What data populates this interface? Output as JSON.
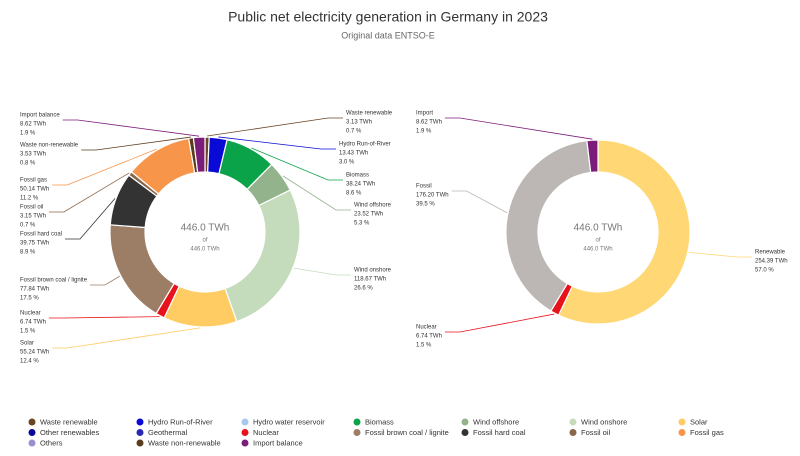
{
  "title": "Public net electricity generation in Germany in 2023",
  "subtitle": "Original data ENTSO-E",
  "chart_data": [
    {
      "type": "donut",
      "center_label": "446.0 TWh",
      "center_sub": "of",
      "center_total": "446.0 TWh",
      "categories": [
        "Waste renewable",
        "Hydro Run-of-River",
        "Biomass",
        "Wind offshore",
        "Wind onshore",
        "Solar",
        "Nuclear",
        "Fossil brown coal / lignite",
        "Fossil hard coal",
        "Fossil oil",
        "Fossil gas",
        "Waste non-renewable",
        "Import balance"
      ],
      "values": [
        3.13,
        13.43,
        38.24,
        23.52,
        118.67,
        55.24,
        6.74,
        77.84,
        39.75,
        3.15,
        50.14,
        3.53,
        8.62
      ],
      "value_labels": [
        "3.13 TWh",
        "13.43 TWh",
        "38.24 TWh",
        "23.52 TWh",
        "118.67 TWh",
        "55.24 TWh",
        "6.74 TWh",
        "77.84 TWh",
        "39.75 TWh",
        "3.15 TWh",
        "50.14 TWh",
        "3.53 TWh",
        "8.62 TWh"
      ],
      "shares": [
        0.7,
        3.0,
        8.6,
        5.3,
        26.6,
        12.4,
        1.5,
        17.5,
        8.9,
        0.7,
        11.2,
        0.8,
        1.9
      ],
      "share_labels": [
        "0.7 %",
        "3.0 %",
        "8.6 %",
        "5.3 %",
        "26.6 %",
        "12.4 %",
        "1.5 %",
        "17.5 %",
        "8.9 %",
        "0.7 %",
        "11.2 %",
        "0.8 %",
        "1.9 %"
      ],
      "colors": [
        "#6b4423",
        "#0a0ad6",
        "#0aa34a",
        "#93b38c",
        "#c5dcbc",
        "#ffcb63",
        "#e8131a",
        "#9c7d66",
        "#333333",
        "#8a6648",
        "#f7954a",
        "#5a3b1c",
        "#7b1c7b"
      ]
    },
    {
      "type": "donut",
      "center_label": "446.0 TWh",
      "center_sub": "of",
      "center_total": "446.0 TWh",
      "categories": [
        "Renewable",
        "Nuclear",
        "Fossil",
        "Import"
      ],
      "values": [
        254.39,
        6.74,
        176.2,
        8.62
      ],
      "value_labels": [
        "254.39 TWh",
        "6.74 TWh",
        "176.20 TWh",
        "8.62 TWh"
      ],
      "shares": [
        57.0,
        1.5,
        39.5,
        1.9
      ],
      "share_labels": [
        "57.0 %",
        "1.5 %",
        "39.5 %",
        "1.9 %"
      ],
      "colors": [
        "#ffd875",
        "#e8131a",
        "#bcb7b4",
        "#7b1c7b"
      ]
    }
  ],
  "legend": [
    {
      "name": "Waste renewable",
      "color": "#6b4423"
    },
    {
      "name": "Hydro Run-of-River",
      "color": "#0a0ad6"
    },
    {
      "name": "Hydro water reservoir",
      "color": "#a8c8f0"
    },
    {
      "name": "Biomass",
      "color": "#0aa34a"
    },
    {
      "name": "Wind offshore",
      "color": "#93b38c"
    },
    {
      "name": "Wind onshore",
      "color": "#c5dcbc"
    },
    {
      "name": "Solar",
      "color": "#ffcb63"
    },
    {
      "name": "Other renewables",
      "color": "#0a0a9a"
    },
    {
      "name": "Geothermal",
      "color": "#2a2ab0"
    },
    {
      "name": "Nuclear",
      "color": "#e8131a"
    },
    {
      "name": "Fossil brown coal / lignite",
      "color": "#9c7d66"
    },
    {
      "name": "Fossil hard coal",
      "color": "#333333"
    },
    {
      "name": "Fossil oil",
      "color": "#8a6648"
    },
    {
      "name": "Fossil gas",
      "color": "#f7954a"
    },
    {
      "name": "Others",
      "color": "#9b8fd0"
    },
    {
      "name": "Waste non-renewable",
      "color": "#5a3b1c"
    },
    {
      "name": "Import balance",
      "color": "#7b1c7b"
    }
  ]
}
